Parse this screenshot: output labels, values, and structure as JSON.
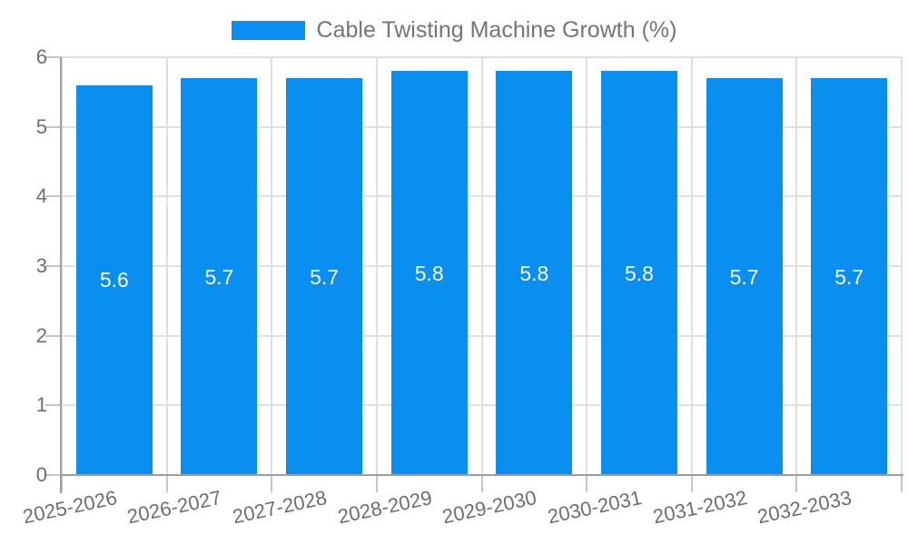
{
  "chart_data": {
    "type": "bar",
    "title": "Cable Twisting Machine Growth (%)",
    "categories": [
      "2025-2026",
      "2026-2027",
      "2027-2028",
      "2028-2029",
      "2029-2030",
      "2030-2031",
      "2031-2032",
      "2032-2033"
    ],
    "values": [
      5.6,
      5.7,
      5.7,
      5.8,
      5.8,
      5.8,
      5.7,
      5.7
    ],
    "value_labels": [
      "5.6",
      "5.7",
      "5.7",
      "5.8",
      "5.8",
      "5.8",
      "5.7",
      "5.7"
    ],
    "xlabel": "",
    "ylabel": "",
    "ylim": [
      0,
      6
    ],
    "yticks": [
      0,
      1,
      2,
      3,
      4,
      5,
      6
    ],
    "grid": "on",
    "legend_position": "top",
    "colors": {
      "bar": "#0a8ef0",
      "grid": "#e0e0e0",
      "axis": "#9e9e9e",
      "tick": "#c6c6c6",
      "tick_label": "#6e6e6e",
      "title_text": "#757575",
      "bar_label": "#ffffff",
      "background": "#ffffff"
    }
  }
}
